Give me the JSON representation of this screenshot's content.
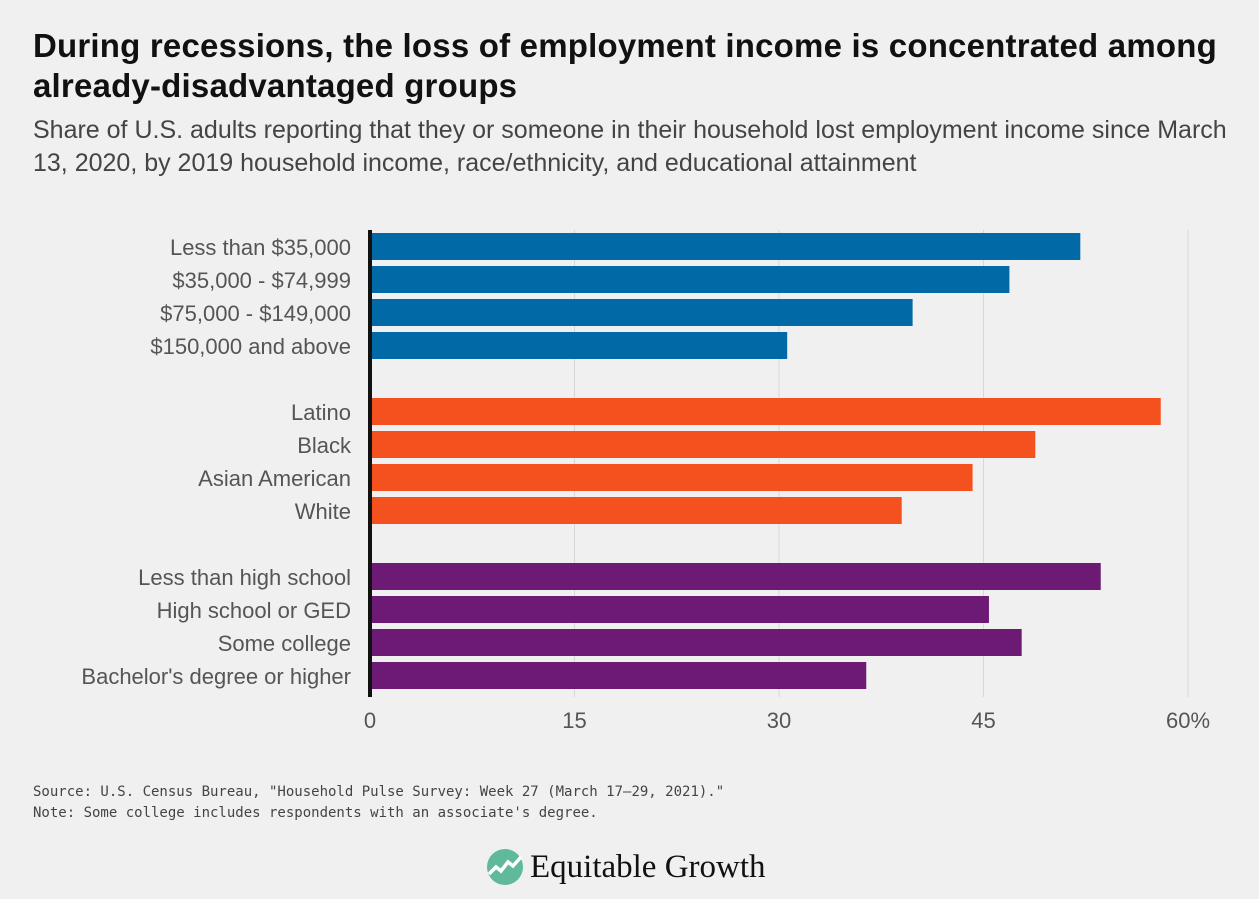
{
  "title": "During recessions, the loss of employment income is concentrated among already-disadvantaged groups",
  "subtitle": "Share of U.S. adults reporting that they or someone in their household lost employment income since March 13, 2020, by 2019 household income, race/ethnicity, and educational attainment",
  "source": "Source: U.S. Census Bureau, \"Household Pulse Survey: Week 27 (March 17–29, 2021).\"",
  "note": "Note: Some college includes respondents with an associate's degree.",
  "logo": {
    "text": "Equitable Growth",
    "icon": "trend-up-circle-icon"
  },
  "chart_data": {
    "type": "bar",
    "orientation": "horizontal",
    "xlim": [
      0,
      60
    ],
    "xticks": [
      "0",
      "15",
      "30",
      "45",
      "60%"
    ],
    "xtick_values": [
      0,
      15,
      30,
      45,
      60
    ],
    "grid": true,
    "groups": [
      {
        "color": "#0069a6",
        "categories": [
          "Less than $35,000",
          "$35,000 - $74,999",
          "$75,000 - $149,000",
          "$150,000 and above"
        ],
        "values": [
          52.1,
          46.9,
          39.8,
          30.6
        ]
      },
      {
        "color": "#f5511e",
        "categories": [
          "Latino",
          "Black",
          "Asian American",
          "White"
        ],
        "values": [
          58.0,
          48.8,
          44.2,
          39.0
        ]
      },
      {
        "color": "#6d1a74",
        "categories": [
          "Less than high school",
          "High school or GED",
          "Some college",
          "Bachelor's degree or higher"
        ],
        "values": [
          53.6,
          45.4,
          47.8,
          36.4
        ]
      }
    ]
  }
}
